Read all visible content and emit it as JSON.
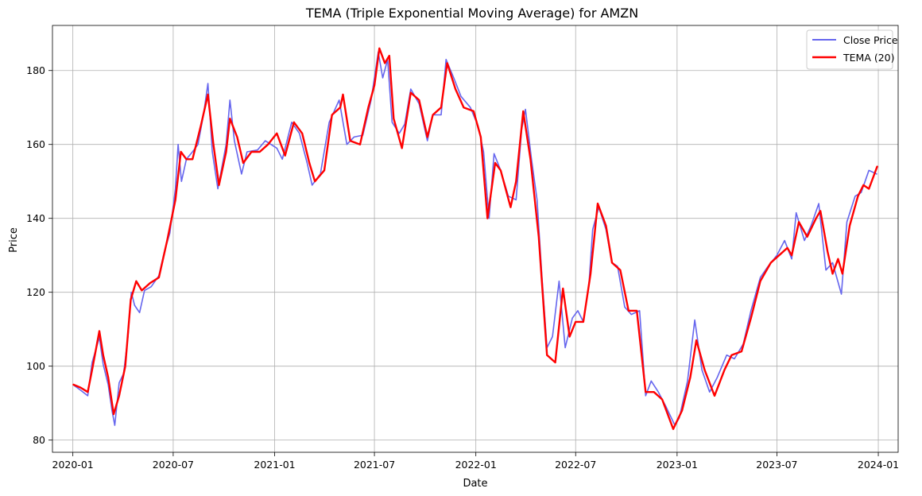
{
  "chart_data": {
    "type": "line",
    "title": "TEMA (Triple Exponential Moving Average) for AMZN",
    "xlabel": "Date",
    "ylabel": "Price",
    "xlim": [
      "2019-11-25",
      "2024-02-06"
    ],
    "ylim": [
      76.7,
      192.2
    ],
    "x_ticks": [
      "2020-01",
      "2020-07",
      "2021-01",
      "2021-07",
      "2022-01",
      "2022-07",
      "2023-01",
      "2023-07",
      "2024-01"
    ],
    "y_ticks": [
      80,
      100,
      120,
      140,
      160,
      180
    ],
    "grid": true,
    "legend_position": "top-right",
    "series": [
      {
        "name": "Close Price",
        "color": "#6666ee",
        "points": [
          [
            "2020-01-02",
            94.9
          ],
          [
            "2020-01-15",
            93.5
          ],
          [
            "2020-01-28",
            92.0
          ],
          [
            "2020-02-05",
            101.0
          ],
          [
            "2020-02-18",
            107.8
          ],
          [
            "2020-02-25",
            100.5
          ],
          [
            "2020-03-05",
            95.0
          ],
          [
            "2020-03-12",
            88.0
          ],
          [
            "2020-03-17",
            84.0
          ],
          [
            "2020-03-25",
            95.5
          ],
          [
            "2020-04-02",
            98.0
          ],
          [
            "2020-04-10",
            108.0
          ],
          [
            "2020-04-16",
            120.0
          ],
          [
            "2020-04-22",
            116.5
          ],
          [
            "2020-05-01",
            114.5
          ],
          [
            "2020-05-10",
            120.5
          ],
          [
            "2020-05-22",
            121.5
          ],
          [
            "2020-06-05",
            124.5
          ],
          [
            "2020-06-15",
            131.0
          ],
          [
            "2020-06-25",
            136.0
          ],
          [
            "2020-07-05",
            148.0
          ],
          [
            "2020-07-10",
            160.0
          ],
          [
            "2020-07-16",
            150.0
          ],
          [
            "2020-07-25",
            156.0
          ],
          [
            "2020-08-05",
            158.0
          ],
          [
            "2020-08-15",
            160.0
          ],
          [
            "2020-08-25",
            168.0
          ],
          [
            "2020-09-02",
            176.5
          ],
          [
            "2020-09-10",
            158.0
          ],
          [
            "2020-09-20",
            148.0
          ],
          [
            "2020-10-05",
            160.0
          ],
          [
            "2020-10-12",
            172.0
          ],
          [
            "2020-10-20",
            161.0
          ],
          [
            "2020-11-02",
            152.0
          ],
          [
            "2020-11-12",
            158.0
          ],
          [
            "2020-12-01",
            158.5
          ],
          [
            "2020-12-15",
            161.0
          ],
          [
            "2021-01-05",
            159.0
          ],
          [
            "2021-01-15",
            156.0
          ],
          [
            "2021-02-01",
            166.0
          ],
          [
            "2021-02-15",
            163.0
          ],
          [
            "2021-03-01",
            155.0
          ],
          [
            "2021-03-10",
            149.0
          ],
          [
            "2021-03-25",
            152.0
          ],
          [
            "2021-04-10",
            166.0
          ],
          [
            "2021-04-28",
            172.0
          ],
          [
            "2021-05-12",
            160.0
          ],
          [
            "2021-05-25",
            162.0
          ],
          [
            "2021-06-10",
            162.5
          ],
          [
            "2021-06-25",
            172.0
          ],
          [
            "2021-07-08",
            185.0
          ],
          [
            "2021-07-16",
            178.0
          ],
          [
            "2021-07-25",
            183.0
          ],
          [
            "2021-08-02",
            166.0
          ],
          [
            "2021-08-15",
            163.0
          ],
          [
            "2021-08-25",
            165.5
          ],
          [
            "2021-09-05",
            175.0
          ],
          [
            "2021-09-20",
            171.0
          ],
          [
            "2021-10-05",
            161.0
          ],
          [
            "2021-10-15",
            168.0
          ],
          [
            "2021-10-30",
            168.0
          ],
          [
            "2021-11-08",
            183.0
          ],
          [
            "2021-11-22",
            178.0
          ],
          [
            "2021-12-05",
            173.0
          ],
          [
            "2021-12-22",
            170.0
          ],
          [
            "2022-01-05",
            165.0
          ],
          [
            "2022-01-15",
            158.0
          ],
          [
            "2022-01-25",
            140.0
          ],
          [
            "2022-02-03",
            157.5
          ],
          [
            "2022-02-15",
            153.0
          ],
          [
            "2022-03-01",
            146.0
          ],
          [
            "2022-03-15",
            145.0
          ],
          [
            "2022-03-25",
            164.0
          ],
          [
            "2022-04-01",
            169.5
          ],
          [
            "2022-04-12",
            156.0
          ],
          [
            "2022-04-22",
            145.0
          ],
          [
            "2022-05-01",
            124.0
          ],
          [
            "2022-05-10",
            105.0
          ],
          [
            "2022-05-20",
            108.0
          ],
          [
            "2022-06-01",
            123.0
          ],
          [
            "2022-06-12",
            105.0
          ],
          [
            "2022-06-25",
            113.0
          ],
          [
            "2022-07-05",
            115.0
          ],
          [
            "2022-07-15",
            112.0
          ],
          [
            "2022-07-25",
            122.0
          ],
          [
            "2022-08-01",
            137.0
          ],
          [
            "2022-08-12",
            143.0
          ],
          [
            "2022-08-25",
            137.0
          ],
          [
            "2022-09-05",
            128.0
          ],
          [
            "2022-09-15",
            127.0
          ],
          [
            "2022-09-28",
            116.0
          ],
          [
            "2022-10-10",
            114.0
          ],
          [
            "2022-10-25",
            115.0
          ],
          [
            "2022-11-05",
            92.0
          ],
          [
            "2022-11-15",
            96.0
          ],
          [
            "2022-11-28",
            93.0
          ],
          [
            "2022-12-12",
            89.0
          ],
          [
            "2022-12-28",
            84.0
          ],
          [
            "2023-01-05",
            86.0
          ],
          [
            "2023-01-20",
            96.0
          ],
          [
            "2023-02-02",
            112.5
          ],
          [
            "2023-02-15",
            99.0
          ],
          [
            "2023-03-01",
            93.0
          ],
          [
            "2023-03-15",
            97.0
          ],
          [
            "2023-04-01",
            103.0
          ],
          [
            "2023-04-15",
            102.0
          ],
          [
            "2023-05-01",
            106.0
          ],
          [
            "2023-05-15",
            115.0
          ],
          [
            "2023-06-01",
            124.0
          ],
          [
            "2023-06-15",
            127.0
          ],
          [
            "2023-07-01",
            130.0
          ],
          [
            "2023-07-15",
            134.0
          ],
          [
            "2023-07-28",
            129.0
          ],
          [
            "2023-08-05",
            141.5
          ],
          [
            "2023-08-20",
            134.0
          ],
          [
            "2023-09-01",
            138.0
          ],
          [
            "2023-09-15",
            144.0
          ],
          [
            "2023-09-28",
            126.0
          ],
          [
            "2023-10-10",
            128.0
          ],
          [
            "2023-10-26",
            119.5
          ],
          [
            "2023-11-05",
            139.0
          ],
          [
            "2023-11-20",
            146.0
          ],
          [
            "2023-12-01",
            147.0
          ],
          [
            "2023-12-15",
            153.0
          ],
          [
            "2023-12-29",
            152.0
          ]
        ]
      },
      {
        "name": "TEMA (20)",
        "color": "#ff0000",
        "points": [
          [
            "2020-01-02",
            95.0
          ],
          [
            "2020-01-15",
            94.2
          ],
          [
            "2020-01-28",
            93.0
          ],
          [
            "2020-02-05",
            99.0
          ],
          [
            "2020-02-18",
            109.5
          ],
          [
            "2020-02-25",
            103.0
          ],
          [
            "2020-03-05",
            97.0
          ],
          [
            "2020-03-15",
            87.0
          ],
          [
            "2020-03-25",
            92.0
          ],
          [
            "2020-04-05",
            100.0
          ],
          [
            "2020-04-15",
            118.0
          ],
          [
            "2020-04-25",
            123.0
          ],
          [
            "2020-05-05",
            120.5
          ],
          [
            "2020-05-20",
            122.5
          ],
          [
            "2020-06-05",
            124.0
          ],
          [
            "2020-06-20",
            134.0
          ],
          [
            "2020-07-05",
            145.0
          ],
          [
            "2020-07-15",
            158.0
          ],
          [
            "2020-07-25",
            156.0
          ],
          [
            "2020-08-05",
            156.0
          ],
          [
            "2020-08-20",
            165.0
          ],
          [
            "2020-09-02",
            173.5
          ],
          [
            "2020-09-12",
            160.0
          ],
          [
            "2020-09-22",
            149.0
          ],
          [
            "2020-10-05",
            158.0
          ],
          [
            "2020-10-12",
            167.0
          ],
          [
            "2020-10-25",
            162.0
          ],
          [
            "2020-11-05",
            155.0
          ],
          [
            "2020-11-20",
            158.0
          ],
          [
            "2020-12-05",
            158.0
          ],
          [
            "2020-12-20",
            160.0
          ],
          [
            "2021-01-05",
            163.0
          ],
          [
            "2021-01-20",
            157.0
          ],
          [
            "2021-02-05",
            166.0
          ],
          [
            "2021-02-20",
            163.0
          ],
          [
            "2021-03-05",
            155.0
          ],
          [
            "2021-03-15",
            150.0
          ],
          [
            "2021-04-01",
            153.0
          ],
          [
            "2021-04-15",
            168.0
          ],
          [
            "2021-04-30",
            170.0
          ],
          [
            "2021-05-05",
            173.5
          ],
          [
            "2021-05-18",
            161.0
          ],
          [
            "2021-06-05",
            160.0
          ],
          [
            "2021-06-20",
            170.0
          ],
          [
            "2021-07-01",
            176.0
          ],
          [
            "2021-07-10",
            186.0
          ],
          [
            "2021-07-20",
            182.0
          ],
          [
            "2021-07-28",
            184.0
          ],
          [
            "2021-08-05",
            167.0
          ],
          [
            "2021-08-20",
            159.0
          ],
          [
            "2021-09-05",
            174.0
          ],
          [
            "2021-09-20",
            172.0
          ],
          [
            "2021-10-05",
            162.0
          ],
          [
            "2021-10-15",
            168.0
          ],
          [
            "2021-10-30",
            170.0
          ],
          [
            "2021-11-10",
            182.0
          ],
          [
            "2021-11-25",
            175.0
          ],
          [
            "2021-12-10",
            170.0
          ],
          [
            "2021-12-28",
            169.0
          ],
          [
            "2022-01-10",
            162.0
          ],
          [
            "2022-01-22",
            140.0
          ],
          [
            "2022-02-05",
            155.0
          ],
          [
            "2022-02-15",
            153.0
          ],
          [
            "2022-03-05",
            143.0
          ],
          [
            "2022-03-15",
            150.0
          ],
          [
            "2022-03-28",
            169.0
          ],
          [
            "2022-04-10",
            156.0
          ],
          [
            "2022-04-25",
            135.0
          ],
          [
            "2022-05-10",
            103.0
          ],
          [
            "2022-05-25",
            101.0
          ],
          [
            "2022-06-08",
            121.0
          ],
          [
            "2022-06-20",
            108.0
          ],
          [
            "2022-07-01",
            112.0
          ],
          [
            "2022-07-15",
            112.0
          ],
          [
            "2022-07-28",
            125.0
          ],
          [
            "2022-08-10",
            144.0
          ],
          [
            "2022-08-25",
            138.0
          ],
          [
            "2022-09-05",
            128.0
          ],
          [
            "2022-09-20",
            126.0
          ],
          [
            "2022-10-05",
            115.0
          ],
          [
            "2022-10-20",
            115.0
          ],
          [
            "2022-11-05",
            93.0
          ],
          [
            "2022-11-20",
            93.0
          ],
          [
            "2022-12-05",
            91.0
          ],
          [
            "2022-12-25",
            83.0
          ],
          [
            "2023-01-10",
            88.0
          ],
          [
            "2023-01-25",
            97.0
          ],
          [
            "2023-02-05",
            107.0
          ],
          [
            "2023-02-20",
            99.0
          ],
          [
            "2023-03-10",
            92.0
          ],
          [
            "2023-03-28",
            99.0
          ],
          [
            "2023-04-10",
            103.0
          ],
          [
            "2023-04-28",
            104.0
          ],
          [
            "2023-05-15",
            113.0
          ],
          [
            "2023-06-01",
            123.0
          ],
          [
            "2023-06-20",
            128.0
          ],
          [
            "2023-07-05",
            130.0
          ],
          [
            "2023-07-20",
            132.0
          ],
          [
            "2023-07-28",
            130.0
          ],
          [
            "2023-08-10",
            139.0
          ],
          [
            "2023-08-25",
            135.0
          ],
          [
            "2023-09-10",
            140.0
          ],
          [
            "2023-09-18",
            142.0
          ],
          [
            "2023-10-01",
            131.0
          ],
          [
            "2023-10-10",
            125.0
          ],
          [
            "2023-10-20",
            129.0
          ],
          [
            "2023-10-28",
            125.0
          ],
          [
            "2023-11-10",
            138.0
          ],
          [
            "2023-11-25",
            146.0
          ],
          [
            "2023-12-05",
            149.0
          ],
          [
            "2023-12-15",
            148.0
          ],
          [
            "2023-12-30",
            154.0
          ]
        ]
      }
    ]
  }
}
